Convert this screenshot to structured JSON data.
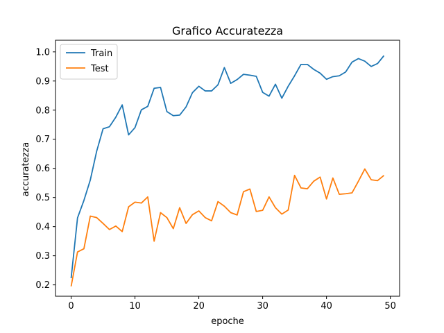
{
  "chart_data": {
    "type": "line",
    "title": "Grafico Accuratezza",
    "xlabel": "epoche",
    "ylabel": "accuratezza",
    "xlim": [
      -2.45,
      51.45
    ],
    "ylim": [
      0.161,
      1.04
    ],
    "xticks": [
      0,
      10,
      20,
      30,
      40,
      50
    ],
    "yticks": [
      0.2,
      0.3,
      0.4,
      0.5,
      0.6,
      0.7,
      0.8,
      0.9,
      1.0
    ],
    "ytick_labels": [
      "0.2",
      "0.3",
      "0.4",
      "0.5",
      "0.6",
      "0.7",
      "0.8",
      "0.9",
      "1.0"
    ],
    "grid": false,
    "legend_position": "top-left",
    "x": [
      0,
      1,
      2,
      3,
      4,
      5,
      6,
      7,
      8,
      9,
      10,
      11,
      12,
      13,
      14,
      15,
      16,
      17,
      18,
      19,
      20,
      21,
      22,
      23,
      24,
      25,
      26,
      27,
      28,
      29,
      30,
      31,
      32,
      33,
      34,
      35,
      36,
      37,
      38,
      39,
      40,
      41,
      42,
      43,
      44,
      45,
      46,
      47,
      48,
      49
    ],
    "series": [
      {
        "name": "Train",
        "color": "#1f77b4",
        "values": [
          0.223,
          0.43,
          0.49,
          0.56,
          0.659,
          0.736,
          0.743,
          0.776,
          0.818,
          0.715,
          0.74,
          0.801,
          0.813,
          0.875,
          0.878,
          0.795,
          0.781,
          0.783,
          0.811,
          0.86,
          0.882,
          0.866,
          0.866,
          0.887,
          0.946,
          0.892,
          0.905,
          0.923,
          0.92,
          0.916,
          0.861,
          0.848,
          0.889,
          0.841,
          0.882,
          0.918,
          0.957,
          0.957,
          0.94,
          0.927,
          0.906,
          0.915,
          0.918,
          0.931,
          0.965,
          0.977,
          0.968,
          0.95,
          0.96,
          0.987
        ]
      },
      {
        "name": "Test",
        "color": "#ff7f0e",
        "values": [
          0.195,
          0.313,
          0.324,
          0.436,
          0.431,
          0.411,
          0.39,
          0.402,
          0.383,
          0.468,
          0.484,
          0.481,
          0.502,
          0.35,
          0.448,
          0.431,
          0.393,
          0.465,
          0.411,
          0.441,
          0.454,
          0.431,
          0.42,
          0.486,
          0.47,
          0.448,
          0.44,
          0.52,
          0.529,
          0.452,
          0.456,
          0.502,
          0.465,
          0.443,
          0.457,
          0.576,
          0.533,
          0.53,
          0.556,
          0.57,
          0.495,
          0.567,
          0.511,
          0.513,
          0.516,
          0.556,
          0.598,
          0.561,
          0.558,
          0.576
        ]
      }
    ]
  }
}
